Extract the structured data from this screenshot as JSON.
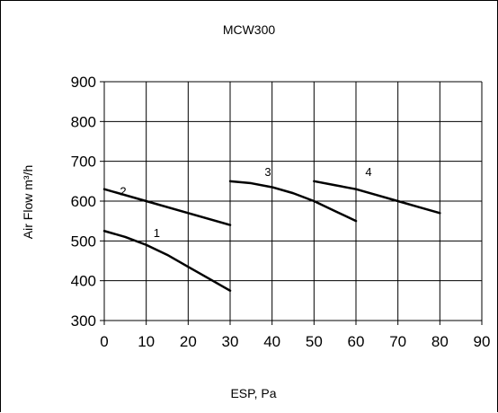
{
  "chart_data": {
    "type": "line",
    "title": "MCW300",
    "xlabel": "ESP, Pa",
    "ylabel": "Air Flow  m³/h",
    "xlim": [
      0,
      90
    ],
    "ylim": [
      300,
      900
    ],
    "xticks": [
      0,
      10,
      20,
      30,
      40,
      50,
      60,
      70,
      80,
      90
    ],
    "yticks": [
      300,
      400,
      500,
      600,
      700,
      800,
      900
    ],
    "grid": true,
    "legend": "none",
    "series": [
      {
        "name": "1",
        "x": [
          0,
          5,
          10,
          15,
          20,
          25,
          30
        ],
        "y": [
          525,
          510,
          490,
          465,
          435,
          405,
          375
        ]
      },
      {
        "name": "2",
        "x": [
          0,
          10,
          20,
          30
        ],
        "y": [
          630,
          600,
          570,
          540
        ]
      },
      {
        "name": "3",
        "x": [
          30,
          35,
          40,
          45,
          50,
          55,
          60
        ],
        "y": [
          650,
          645,
          635,
          620,
          600,
          575,
          550
        ]
      },
      {
        "name": "4",
        "x": [
          50,
          55,
          60,
          65,
          70,
          75,
          80
        ],
        "y": [
          650,
          640,
          630,
          615,
          600,
          585,
          570
        ]
      }
    ],
    "label_positions": [
      {
        "name": "1",
        "x": 12.5,
        "y": 510
      },
      {
        "name": "2",
        "x": 4.5,
        "y": 615
      },
      {
        "name": "3",
        "x": 39,
        "y": 663
      },
      {
        "name": "4",
        "x": 63,
        "y": 663
      }
    ],
    "colors": {
      "line": "#000000",
      "grid": "#000000",
      "background": "#ffffff"
    }
  }
}
